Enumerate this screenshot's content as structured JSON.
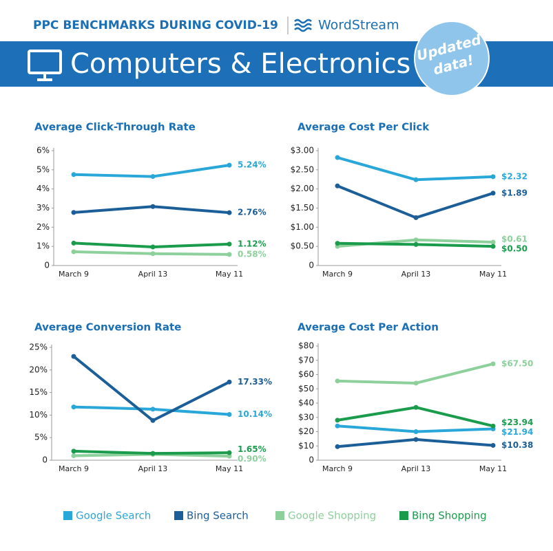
{
  "header": {
    "title": "PPC BENCHMARKS DURING COVID-19",
    "brand": "WordStream",
    "banner": "Computers & Electronics",
    "badge": [
      "Updated",
      "data!"
    ]
  },
  "legend": [
    {
      "name": "Google Search",
      "color": "#2aa7d9"
    },
    {
      "name": "Bing Search",
      "color": "#1b5e98"
    },
    {
      "name": "Google Shopping",
      "color": "#8dd09c"
    },
    {
      "name": "Bing Shopping",
      "color": "#1a9c4c"
    }
  ],
  "chart_data": [
    {
      "type": "line",
      "title": "Average Click-Through Rate",
      "categories": [
        "March 9",
        "April 13",
        "May 11"
      ],
      "ylim": [
        0,
        6
      ],
      "yticks": [
        0,
        {
          "value": 1,
          "label": "1%"
        },
        {
          "value": 2,
          "label": "2%"
        },
        {
          "value": 3,
          "label": "3%"
        },
        {
          "value": 4,
          "label": "4%"
        },
        {
          "value": 5,
          "label": "5%"
        },
        {
          "value": 6,
          "label": "6%"
        }
      ],
      "series": [
        {
          "values": [
            4.75,
            4.65,
            5.24
          ],
          "value_labels": [
            null,
            null,
            "5.24%"
          ]
        },
        {
          "values": [
            2.77,
            3.08,
            2.76
          ],
          "value_labels": [
            null,
            null,
            "2.76%"
          ]
        },
        {
          "values": [
            0.72,
            0.62,
            0.58
          ],
          "value_labels": [
            null,
            null,
            "0.58%"
          ]
        },
        {
          "values": [
            1.17,
            0.97,
            1.12
          ],
          "value_labels": [
            null,
            null,
            "1.12%"
          ]
        }
      ]
    },
    {
      "type": "line",
      "title": "Average Cost Per Click",
      "categories": [
        "March 9",
        "April 13",
        "May 11"
      ],
      "ylim": [
        0,
        3
      ],
      "yticks": [
        0,
        {
          "value": 0.5,
          "label": "$0.50"
        },
        {
          "value": 1,
          "label": "$1.00"
        },
        {
          "value": 1.5,
          "label": "$1.50"
        },
        {
          "value": 2,
          "label": "$2.00"
        },
        {
          "value": 2.5,
          "label": "$2.50"
        },
        {
          "value": 3,
          "label": "$3.00"
        }
      ],
      "series": [
        {
          "values": [
            2.82,
            2.24,
            2.32
          ],
          "value_labels": [
            null,
            null,
            "$2.32"
          ]
        },
        {
          "values": [
            2.08,
            1.25,
            1.89
          ],
          "value_labels": [
            null,
            null,
            "$1.89"
          ]
        },
        {
          "values": [
            0.5,
            0.67,
            0.61
          ],
          "value_labels": [
            null,
            null,
            "$0.61"
          ]
        },
        {
          "values": [
            0.58,
            0.55,
            0.5
          ],
          "value_labels": [
            null,
            null,
            "$0.50"
          ]
        }
      ]
    },
    {
      "type": "line",
      "title": "Average Conversion Rate",
      "categories": [
        "March 9",
        "April 13",
        "May 11"
      ],
      "ylim": [
        0,
        25
      ],
      "yticks": [
        0,
        {
          "value": 5,
          "label": "5%"
        },
        {
          "value": 10,
          "label": "10%"
        },
        {
          "value": 15,
          "label": "15%"
        },
        {
          "value": 20,
          "label": "20%"
        },
        {
          "value": 25,
          "label": "25%"
        }
      ],
      "series": [
        {
          "values": [
            11.8,
            11.3,
            10.14
          ],
          "value_labels": [
            null,
            null,
            "10.14%"
          ]
        },
        {
          "values": [
            23.0,
            8.8,
            17.33
          ],
          "value_labels": [
            null,
            null,
            "17.33%"
          ]
        },
        {
          "values": [
            1.0,
            1.3,
            0.9
          ],
          "value_labels": [
            null,
            null,
            "0.90%"
          ]
        },
        {
          "values": [
            2.0,
            1.5,
            1.65
          ],
          "value_labels": [
            null,
            null,
            "1.65%"
          ]
        }
      ]
    },
    {
      "type": "line",
      "title": "Average Cost Per Action",
      "categories": [
        "March 9",
        "April 13",
        "May 11"
      ],
      "ylim": [
        0,
        80
      ],
      "yticks": [
        0,
        {
          "value": 10,
          "label": "$10"
        },
        {
          "value": 20,
          "label": "$20"
        },
        {
          "value": 30,
          "label": "$30"
        },
        {
          "value": 40,
          "label": "$40"
        },
        {
          "value": 50,
          "label": "$50"
        },
        {
          "value": 60,
          "label": "$60"
        },
        {
          "value": 70,
          "label": "$70"
        },
        {
          "value": 80,
          "label": "$80"
        }
      ],
      "series": [
        {
          "values": [
            24,
            20,
            21.94
          ],
          "value_labels": [
            null,
            null,
            "$21.94"
          ]
        },
        {
          "values": [
            9.5,
            14.5,
            10.38
          ],
          "value_labels": [
            null,
            null,
            "$10.38"
          ]
        },
        {
          "values": [
            55.5,
            54,
            67.5
          ],
          "value_labels": [
            null,
            null,
            "$67.50"
          ]
        },
        {
          "values": [
            28,
            37,
            23.94
          ],
          "value_labels": [
            null,
            null,
            "$23.94"
          ]
        }
      ]
    }
  ]
}
